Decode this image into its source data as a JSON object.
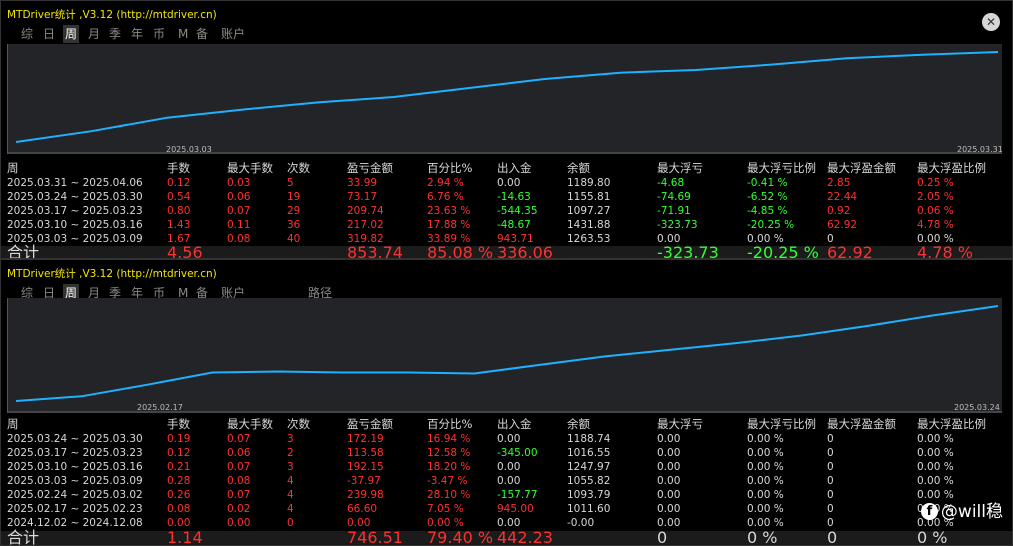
{
  "panels": [
    {
      "title": "MTDriver统计 ,V3.12 (http://mtdriver.cn)",
      "tabs": [
        "综",
        "日",
        "周",
        "月",
        "季",
        "年",
        "币",
        "M",
        "备",
        "账户"
      ],
      "active_tab": 2,
      "date_start": "2025.03.03",
      "date_end": "2025.03.31",
      "columns": [
        "周",
        "手数",
        "最大手数",
        "次数",
        "盈亏金额",
        "百分比%",
        "出入金",
        "余额",
        "最大浮亏",
        "最大浮亏比例",
        "最大浮盈金额",
        "最大浮盈比例"
      ],
      "rows": [
        [
          "2025.03.31 ~ 2025.04.06",
          "0.12",
          "0.03",
          "5",
          "33.99",
          "2.94 %",
          "0.00",
          "1189.80",
          "-4.68",
          "-0.41 %",
          "2.85",
          "0.25 %"
        ],
        [
          "2025.03.24 ~ 2025.03.30",
          "0.54",
          "0.06",
          "19",
          "73.17",
          "6.76 %",
          "-14.63",
          "1155.81",
          "-74.69",
          "-6.52 %",
          "22.44",
          "2.05 %"
        ],
        [
          "2025.03.17 ~ 2025.03.23",
          "0.80",
          "0.07",
          "29",
          "209.74",
          "23.63 %",
          "-544.35",
          "1097.27",
          "-71.91",
          "-4.85 %",
          "0.92",
          "0.06 %"
        ],
        [
          "2025.03.10 ~ 2025.03.16",
          "1.43",
          "0.11",
          "36",
          "217.02",
          "17.88 %",
          "-48.67",
          "1431.88",
          "-323.73",
          "-20.25 %",
          "62.92",
          "4.78 %"
        ],
        [
          "2025.03.03 ~ 2025.03.09",
          "1.67",
          "0.08",
          "40",
          "319.82",
          "33.89 %",
          "943.71",
          "1263.53",
          "0.00",
          "0.00 %",
          "0",
          "0.00 %"
        ]
      ],
      "total": [
        "合计",
        "4.56",
        "",
        "",
        "853.74",
        "85.08 %",
        "336.06",
        "",
        "-323.73",
        "-20.25 %",
        "62.92",
        "4.78 %"
      ],
      "equity_curve": [
        0,
        0.12,
        0.27,
        0.36,
        0.44,
        0.5,
        0.6,
        0.7,
        0.77,
        0.8,
        0.86,
        0.93,
        0.97,
        1.0
      ]
    },
    {
      "title": "MTDriver统计 ,V3.12 (http://mtdriver.cn)",
      "tabs": [
        "综",
        "日",
        "周",
        "月",
        "季",
        "年",
        "币",
        "M",
        "备",
        "账户",
        "路径"
      ],
      "active_tab": 2,
      "date_start": "2025.02.17",
      "date_end": "2025.03.24",
      "columns": [
        "周",
        "手数",
        "最大手数",
        "次数",
        "盈亏金额",
        "百分比%",
        "出入金",
        "余额",
        "最大浮亏",
        "最大浮亏比例",
        "最大浮盈金额",
        "最大浮盈比例"
      ],
      "rows": [
        [
          "2025.03.24 ~ 2025.03.30",
          "0.19",
          "0.07",
          "3",
          "172.19",
          "16.94 %",
          "0.00",
          "1188.74",
          "0.00",
          "0.00 %",
          "0",
          "0.00 %"
        ],
        [
          "2025.03.17 ~ 2025.03.23",
          "0.12",
          "0.06",
          "2",
          "113.58",
          "12.58 %",
          "-345.00",
          "1016.55",
          "0.00",
          "0.00 %",
          "0",
          "0.00 %"
        ],
        [
          "2025.03.10 ~ 2025.03.16",
          "0.21",
          "0.07",
          "3",
          "192.15",
          "18.20 %",
          "0.00",
          "1247.97",
          "0.00",
          "0.00 %",
          "0",
          "0.00 %"
        ],
        [
          "2025.03.03 ~ 2025.03.09",
          "0.28",
          "0.08",
          "4",
          "-37.97",
          "-3.47 %",
          "0.00",
          "1055.82",
          "0.00",
          "0.00 %",
          "0",
          "0.00 %"
        ],
        [
          "2025.02.24 ~ 2025.03.02",
          "0.26",
          "0.07",
          "4",
          "239.98",
          "28.10 %",
          "-157.77",
          "1093.79",
          "0.00",
          "0.00 %",
          "0",
          "0.00 %"
        ],
        [
          "2025.02.17 ~ 2025.02.23",
          "0.08",
          "0.02",
          "4",
          "66.60",
          "7.05 %",
          "945.00",
          "1011.60",
          "0.00",
          "0.00 %",
          "0",
          "0.00 %"
        ],
        [
          "2024.12.02 ~ 2024.12.08",
          "0.00",
          "0.00",
          "0",
          "0.00",
          "0.00 %",
          "0.00",
          "-0.00",
          "0.00",
          "0.00 %",
          "0",
          "0.00 %"
        ]
      ],
      "total": [
        "合计",
        "1.14",
        "",
        "",
        "746.51",
        "79.40 %",
        "442.23",
        "",
        "0",
        "0 %",
        "0",
        "0 %"
      ],
      "equity_curve": [
        0,
        0.05,
        0.17,
        0.3,
        0.31,
        0.3,
        0.3,
        0.29,
        0.38,
        0.47,
        0.54,
        0.61,
        0.69,
        0.79,
        0.9,
        1.0
      ]
    }
  ],
  "watermark": "@will稳"
}
